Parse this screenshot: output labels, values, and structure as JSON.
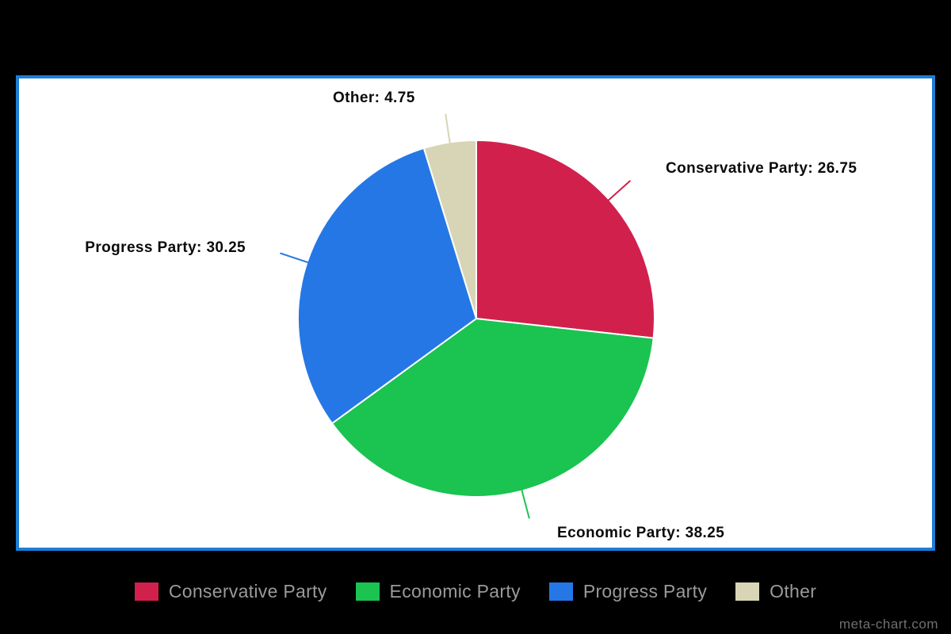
{
  "chart_data": {
    "type": "pie",
    "categories": [
      "Conservative Party",
      "Economic Party",
      "Progress Party",
      "Other"
    ],
    "values": [
      26.75,
      38.25,
      30.25,
      4.75
    ],
    "colors": [
      "#d2204c",
      "#1bc351",
      "#2577e5",
      "#d8d4b6"
    ],
    "annotations": [
      "Conservative Party: 26.75",
      "Economic Party: 38.25",
      "Progress Party: 30.25",
      "Other: 4.75"
    ],
    "title": "",
    "legend_position": "bottom",
    "slice_start": "top",
    "direction": "clockwise"
  },
  "panel": {
    "border_color": "#1c7ed6",
    "background": "#ffffff"
  },
  "watermark": "meta-chart.com"
}
